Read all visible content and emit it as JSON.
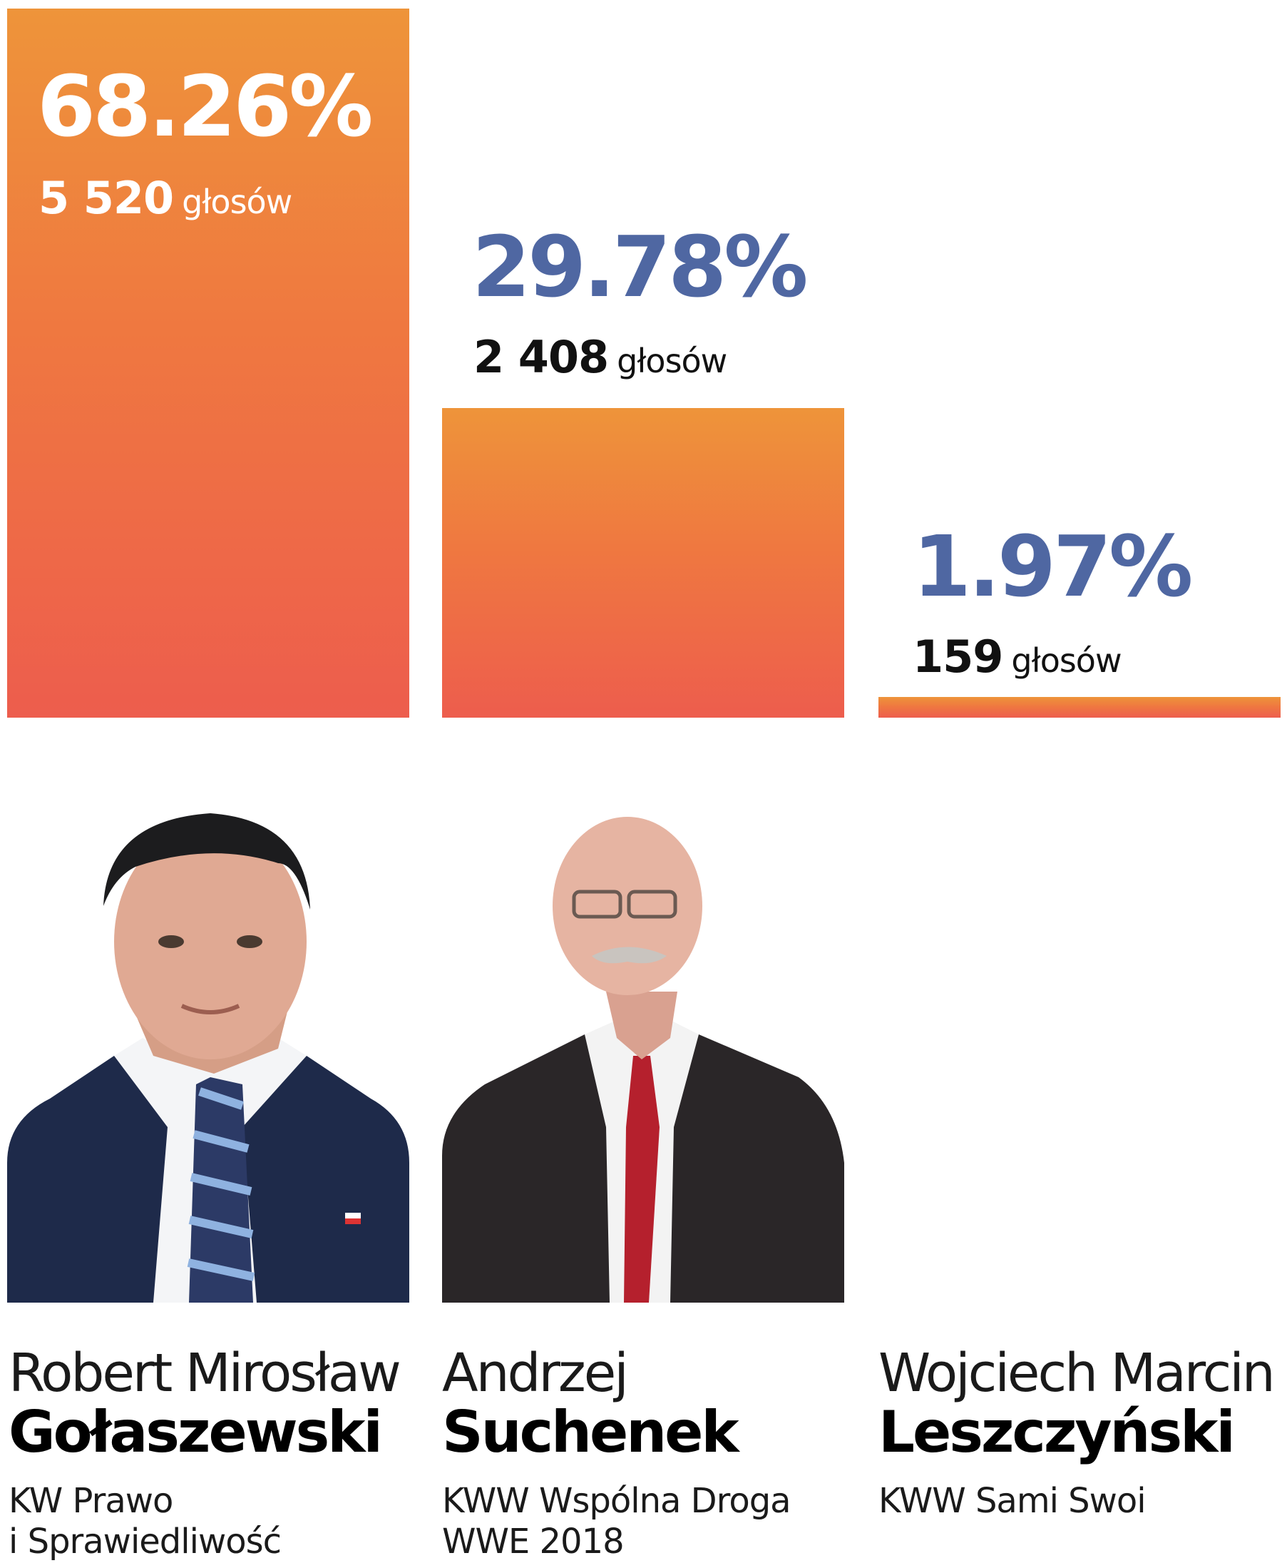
{
  "chart_data": {
    "type": "bar",
    "categories": [
      "Robert Mirosław Gołaszewski",
      "Andrzej Suchenek",
      "Wojciech Marcin Leszczyński"
    ],
    "values": [
      68.26,
      29.78,
      1.97
    ],
    "ylim": [
      0,
      68.26
    ],
    "grid": false,
    "labels": {
      "pct": [
        "68.26%",
        "29.78%",
        "1.97%"
      ],
      "votes": [
        "5 520",
        "2 408",
        "159"
      ],
      "votes_unit": "głosów"
    }
  },
  "candidates": [
    {
      "first_name": "Robert Mirosław",
      "last_name": "Gołaszewski",
      "party_lines": [
        "KW Prawo",
        "i Sprawiedliwość"
      ],
      "photo": "portrait-photo"
    },
    {
      "first_name": "Andrzej",
      "last_name": "Suchenek",
      "party_lines": [
        "KWW Wspólna Droga",
        "WWE 2018"
      ],
      "photo": "portrait-photo"
    },
    {
      "first_name": "Wojciech Marcin",
      "last_name": "Leszczyński",
      "party_lines": [
        "KWW Sami Swoi"
      ],
      "photo": ""
    }
  ],
  "colors": {
    "bar_top": "#ee943a",
    "bar_bottom": "#ed5d4d",
    "pct_label": "#4f67a2",
    "pct_label_inside": "#ffffff",
    "votes_label": "#111111"
  }
}
